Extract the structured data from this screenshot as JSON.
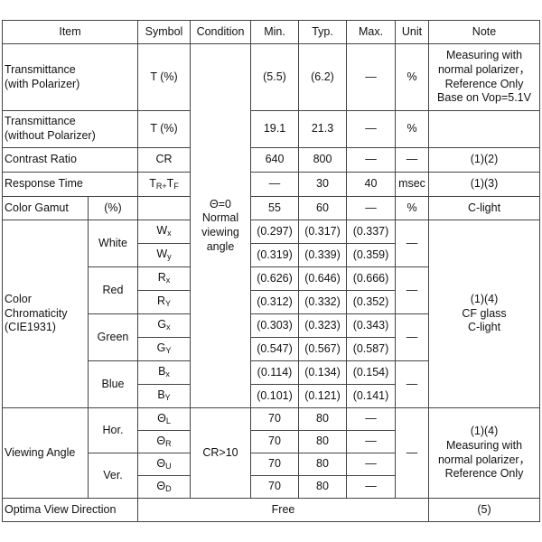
{
  "table": {
    "header": [
      "Item",
      "Symbol",
      "Condition",
      "Min.",
      "Typ.",
      "Max.",
      "Unit",
      "Note"
    ],
    "rows": [
      {
        "item": "Transmittance\n(with Polarizer)",
        "symbol": "T (%)",
        "min": "(5.5)",
        "typ": "(6.2)",
        "max": "—",
        "unit": "%",
        "note": "Measuring with\nnormal polarizer，\nReference Only\nBase on Vop=5.1V"
      },
      {
        "item": "Transmittance\n(without Polarizer)",
        "symbol": "T (%)",
        "min": "19.1",
        "typ": "21.3",
        "max": "—",
        "unit": "%"
      },
      {
        "item": "Contrast Ratio",
        "symbol": "CR",
        "min": "640",
        "typ": "800",
        "max": "—",
        "unit": "—",
        "note": "(1)(2)"
      },
      {
        "item": "Response Time",
        "symbol": {
          "base": "T",
          "sub": "R+"
        },
        "symbol2": {
          "base": "T",
          "sub": "F"
        },
        "min": "—",
        "typ": "30",
        "max": "40",
        "unit": "msec",
        "note": "(1)(3)"
      },
      {
        "item": "Color Gamut",
        "sub": "(%)",
        "min": "55",
        "typ": "60",
        "max": "—",
        "unit": "%",
        "note": "C-light"
      }
    ],
    "condition": "Θ=0\nNormal\nviewing\nangle",
    "chromaticity": {
      "item": "Color\nChromaticity\n(CIE1931)",
      "note": "(1)(4)\nCF glass\nC-light",
      "groups": [
        {
          "name": "White",
          "unit": "—",
          "rows": [
            {
              "symbol": {
                "base": "W",
                "sub": "x"
              },
              "min": "(0.297)",
              "typ": "(0.317)",
              "max": "(0.337)"
            },
            {
              "symbol": {
                "base": "W",
                "sub": "y"
              },
              "min": "(0.319)",
              "typ": "(0.339)",
              "max": "(0.359)"
            }
          ]
        },
        {
          "name": "Red",
          "unit": "—",
          "rows": [
            {
              "symbol": {
                "base": "R",
                "sub": "x"
              },
              "min": "(0.626)",
              "typ": "(0.646)",
              "max": "(0.666)"
            },
            {
              "symbol": {
                "base": "R",
                "sub": "Y"
              },
              "min": "(0.312)",
              "typ": "(0.332)",
              "max": "(0.352)"
            }
          ]
        },
        {
          "name": "Green",
          "unit": "—",
          "rows": [
            {
              "symbol": {
                "base": "G",
                "sub": "x"
              },
              "min": "(0.303)",
              "typ": "(0.323)",
              "max": "(0.343)"
            },
            {
              "symbol": {
                "base": "G",
                "sub": "Y"
              },
              "min": "(0.547)",
              "typ": "(0.567)",
              "max": "(0.587)"
            }
          ]
        },
        {
          "name": "Blue",
          "unit": "—",
          "rows": [
            {
              "symbol": {
                "base": "B",
                "sub": "x"
              },
              "min": "(0.114)",
              "typ": "(0.134)",
              "max": "(0.154)"
            },
            {
              "symbol": {
                "base": "B",
                "sub": "Y"
              },
              "min": "(0.101)",
              "typ": "(0.121)",
              "max": "(0.141)"
            }
          ]
        }
      ]
    },
    "viewing": {
      "item": "Viewing Angle",
      "condition": "CR>10",
      "unit": "—",
      "note": "(1)(4)\nMeasuring with\nnormal polarizer，\nReference Only",
      "groups": [
        {
          "name": "Hor.",
          "rows": [
            {
              "symbol": {
                "base": "Θ",
                "sub": "L"
              },
              "min": "70",
              "typ": "80",
              "max": "—"
            },
            {
              "symbol": {
                "base": "Θ",
                "sub": "R"
              },
              "min": "70",
              "typ": "80",
              "max": "—"
            }
          ]
        },
        {
          "name": "Ver.",
          "rows": [
            {
              "symbol": {
                "base": "Θ",
                "sub": "U"
              },
              "min": "70",
              "typ": "80",
              "max": "—"
            },
            {
              "symbol": {
                "base": "Θ",
                "sub": "D"
              },
              "min": "70",
              "typ": "80",
              "max": "—"
            }
          ]
        }
      ]
    },
    "footer": {
      "item": "Optima View Direction",
      "value": "Free",
      "note": "(5)"
    }
  }
}
